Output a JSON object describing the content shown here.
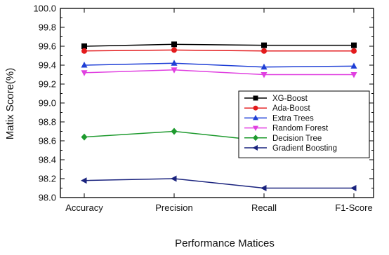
{
  "chart_data": {
    "type": "line",
    "title": "",
    "xlabel": "Performance Matices",
    "ylabel": "Matix Score(%)",
    "categories": [
      "Accuracy",
      "Precision",
      "Recall",
      "F1-Score"
    ],
    "ylim": [
      98.0,
      100.0
    ],
    "yticks": [
      "98.0",
      "98.2",
      "98.4",
      "98.6",
      "98.8",
      "99.0",
      "99.2",
      "99.4",
      "99.6",
      "99.8",
      "100.0"
    ],
    "grid": false,
    "legend_position": "center-right",
    "series": [
      {
        "name": "XG-Boost",
        "values": [
          99.6,
          99.62,
          99.61,
          99.61
        ],
        "color": "#000000",
        "marker": "square"
      },
      {
        "name": "Ada-Boost",
        "values": [
          99.55,
          99.56,
          99.55,
          99.55
        ],
        "color": "#e31a1c",
        "marker": "circle"
      },
      {
        "name": "Extra Trees",
        "values": [
          99.4,
          99.42,
          99.38,
          99.39
        ],
        "color": "#1f3fd6",
        "marker": "triangle-up"
      },
      {
        "name": "Random Forest",
        "values": [
          99.32,
          99.35,
          99.3,
          99.3
        ],
        "color": "#e040e0",
        "marker": "triangle-down"
      },
      {
        "name": "Decision Tree",
        "values": [
          98.64,
          98.7,
          98.6,
          98.6
        ],
        "color": "#1e9a2e",
        "marker": "diamond"
      },
      {
        "name": "Gradient Boosting",
        "values": [
          98.18,
          98.2,
          98.1,
          98.1
        ],
        "color": "#1a237e",
        "marker": "triangle-left"
      }
    ]
  }
}
